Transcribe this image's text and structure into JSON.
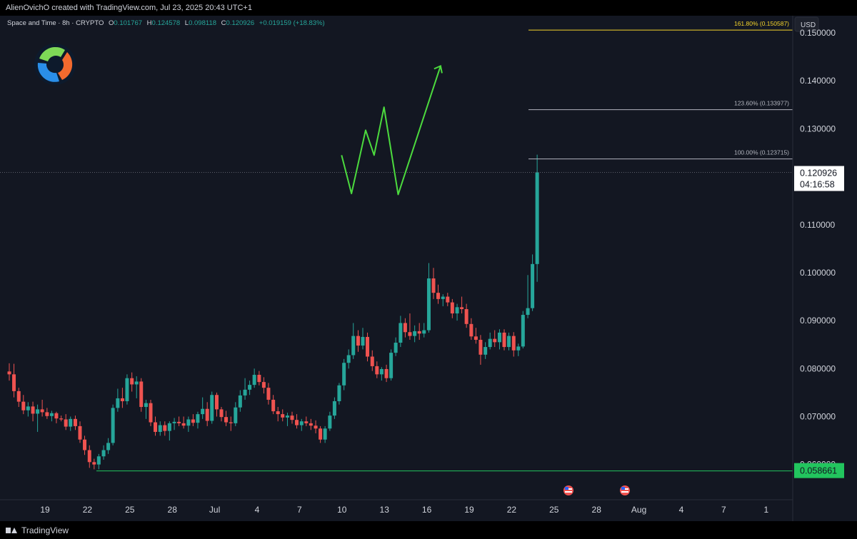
{
  "header": {
    "attribution": "AlienOvichO created with TradingView.com, Jul 23, 2025 20:43 UTC+1"
  },
  "legend": {
    "symbol": "Space and Time · 8h · CRYPTO",
    "o_label": "O",
    "o_value": "0.101767",
    "h_label": "H",
    "h_value": "0.124578",
    "l_label": "L",
    "l_value": "0.098118",
    "c_label": "C",
    "c_value": "0.120926",
    "change": "+0.019159 (+18.83%)"
  },
  "price_axis": {
    "currency": "USD",
    "ticks": [
      "0.150000",
      "0.140000",
      "0.130000",
      "0.120000",
      "0.110000",
      "0.100000",
      "0.090000",
      "0.080000",
      "0.070000",
      "0.060000"
    ],
    "current_price": "0.120926",
    "countdown": "04:16:58",
    "support_price": "0.058661"
  },
  "time_axis": {
    "labels": [
      "19",
      "22",
      "25",
      "28",
      "Jul",
      "4",
      "7",
      "10",
      "13",
      "16",
      "19",
      "22",
      "25",
      "28",
      "Aug",
      "4",
      "7",
      "1"
    ]
  },
  "fib_levels": [
    {
      "label": "161.80% (0.150587)",
      "price": 0.150587,
      "color": "#f5d42b"
    },
    {
      "label": "123.60% (0.133977)",
      "price": 0.133977,
      "color": "#b2b5be"
    },
    {
      "label": "100.00% (0.123715)",
      "price": 0.123715,
      "color": "#b2b5be"
    }
  ],
  "support_level": {
    "price": 0.058661,
    "color": "#22c55e"
  },
  "projection": {
    "color": "#4cdb3e",
    "points": [
      [
        23.5,
        0.1245
      ],
      [
        24.2,
        0.1165
      ],
      [
        25.2,
        0.1297
      ],
      [
        25.8,
        0.1245
      ],
      [
        26.5,
        0.1345
      ],
      [
        27.5,
        0.1163
      ],
      [
        30.5,
        0.1431
      ]
    ]
  },
  "colors": {
    "up": "#26a69a",
    "down": "#ef5350",
    "background": "#131722",
    "axis_text": "#d1d4dc"
  },
  "footer": {
    "brand": "TradingView"
  },
  "chart_data": {
    "type": "candlestick",
    "title": "Space and Time · 8h · CRYPTO",
    "x_unit": "days from Jun 19, 2025",
    "ylim": [
      0.0565,
      0.152
    ],
    "series": [
      {
        "x": 0,
        "o": 0.0794,
        "h": 0.0811,
        "l": 0.0775,
        "c": 0.0788
      },
      {
        "x": 0.33,
        "o": 0.0788,
        "h": 0.081,
        "l": 0.074,
        "c": 0.0753
      },
      {
        "x": 0.67,
        "o": 0.0753,
        "h": 0.076,
        "l": 0.072,
        "c": 0.0731
      },
      {
        "x": 1,
        "o": 0.0731,
        "h": 0.0745,
        "l": 0.0705,
        "c": 0.0713
      },
      {
        "x": 1.33,
        "o": 0.0713,
        "h": 0.073,
        "l": 0.07,
        "c": 0.0721
      },
      {
        "x": 1.67,
        "o": 0.0721,
        "h": 0.0731,
        "l": 0.069,
        "c": 0.0706
      },
      {
        "x": 2,
        "o": 0.0706,
        "h": 0.0725,
        "l": 0.0668,
        "c": 0.0715
      },
      {
        "x": 2.33,
        "o": 0.0715,
        "h": 0.0735,
        "l": 0.07,
        "c": 0.0709
      },
      {
        "x": 2.67,
        "o": 0.0709,
        "h": 0.0718,
        "l": 0.0695,
        "c": 0.0701
      },
      {
        "x": 3,
        "o": 0.0701,
        "h": 0.0712,
        "l": 0.069,
        "c": 0.0707
      },
      {
        "x": 3.33,
        "o": 0.0707,
        "h": 0.071,
        "l": 0.0686,
        "c": 0.0696
      },
      {
        "x": 3.67,
        "o": 0.0696,
        "h": 0.0702,
        "l": 0.069,
        "c": 0.0694
      },
      {
        "x": 4,
        "o": 0.0694,
        "h": 0.0705,
        "l": 0.0672,
        "c": 0.0679
      },
      {
        "x": 4.33,
        "o": 0.0679,
        "h": 0.07,
        "l": 0.067,
        "c": 0.0695
      },
      {
        "x": 4.67,
        "o": 0.0695,
        "h": 0.0702,
        "l": 0.0672,
        "c": 0.068
      },
      {
        "x": 5,
        "o": 0.068,
        "h": 0.069,
        "l": 0.0645,
        "c": 0.0652
      },
      {
        "x": 5.33,
        "o": 0.0652,
        "h": 0.066,
        "l": 0.062,
        "c": 0.063
      },
      {
        "x": 5.67,
        "o": 0.063,
        "h": 0.064,
        "l": 0.0593,
        "c": 0.0605
      },
      {
        "x": 6,
        "o": 0.0605,
        "h": 0.0612,
        "l": 0.059,
        "c": 0.06
      },
      {
        "x": 6.33,
        "o": 0.06,
        "h": 0.0622,
        "l": 0.059,
        "c": 0.0617
      },
      {
        "x": 6.67,
        "o": 0.0617,
        "h": 0.064,
        "l": 0.061,
        "c": 0.063
      },
      {
        "x": 7,
        "o": 0.063,
        "h": 0.0655,
        "l": 0.0622,
        "c": 0.0645
      },
      {
        "x": 7.33,
        "o": 0.0645,
        "h": 0.0725,
        "l": 0.064,
        "c": 0.0718
      },
      {
        "x": 7.67,
        "o": 0.0718,
        "h": 0.0758,
        "l": 0.071,
        "c": 0.0738
      },
      {
        "x": 8,
        "o": 0.0738,
        "h": 0.076,
        "l": 0.0718,
        "c": 0.0732
      },
      {
        "x": 8.33,
        "o": 0.0732,
        "h": 0.0788,
        "l": 0.0725,
        "c": 0.078
      },
      {
        "x": 8.67,
        "o": 0.078,
        "h": 0.0792,
        "l": 0.0752,
        "c": 0.0767
      },
      {
        "x": 9,
        "o": 0.0767,
        "h": 0.0784,
        "l": 0.0738,
        "c": 0.0773
      },
      {
        "x": 9.33,
        "o": 0.0773,
        "h": 0.078,
        "l": 0.071,
        "c": 0.072
      },
      {
        "x": 9.67,
        "o": 0.072,
        "h": 0.0735,
        "l": 0.0695,
        "c": 0.0728
      },
      {
        "x": 10,
        "o": 0.0728,
        "h": 0.0735,
        "l": 0.068,
        "c": 0.0688
      },
      {
        "x": 10.33,
        "o": 0.0688,
        "h": 0.07,
        "l": 0.066,
        "c": 0.0668
      },
      {
        "x": 10.67,
        "o": 0.0668,
        "h": 0.069,
        "l": 0.066,
        "c": 0.0682
      },
      {
        "x": 11,
        "o": 0.0682,
        "h": 0.069,
        "l": 0.066,
        "c": 0.067
      },
      {
        "x": 11.33,
        "o": 0.067,
        "h": 0.069,
        "l": 0.065,
        "c": 0.0686
      },
      {
        "x": 11.67,
        "o": 0.0686,
        "h": 0.0697,
        "l": 0.0672,
        "c": 0.0689
      },
      {
        "x": 12,
        "o": 0.0689,
        "h": 0.07,
        "l": 0.068,
        "c": 0.0686
      },
      {
        "x": 12.33,
        "o": 0.0686,
        "h": 0.07,
        "l": 0.0675,
        "c": 0.0681
      },
      {
        "x": 12.67,
        "o": 0.0681,
        "h": 0.07,
        "l": 0.0668,
        "c": 0.0694
      },
      {
        "x": 13,
        "o": 0.0694,
        "h": 0.0705,
        "l": 0.068,
        "c": 0.0687
      },
      {
        "x": 13.33,
        "o": 0.0687,
        "h": 0.071,
        "l": 0.0675,
        "c": 0.0705
      },
      {
        "x": 13.67,
        "o": 0.0705,
        "h": 0.074,
        "l": 0.0695,
        "c": 0.0716
      },
      {
        "x": 14,
        "o": 0.0716,
        "h": 0.073,
        "l": 0.068,
        "c": 0.0691
      },
      {
        "x": 14.33,
        "o": 0.0691,
        "h": 0.0752,
        "l": 0.0685,
        "c": 0.0745
      },
      {
        "x": 14.67,
        "o": 0.0745,
        "h": 0.075,
        "l": 0.07,
        "c": 0.0715
      },
      {
        "x": 15,
        "o": 0.0715,
        "h": 0.072,
        "l": 0.069,
        "c": 0.0699
      },
      {
        "x": 15.33,
        "o": 0.0699,
        "h": 0.0712,
        "l": 0.068,
        "c": 0.0688
      },
      {
        "x": 15.67,
        "o": 0.0688,
        "h": 0.07,
        "l": 0.067,
        "c": 0.0686
      },
      {
        "x": 16,
        "o": 0.0686,
        "h": 0.073,
        "l": 0.068,
        "c": 0.0719
      },
      {
        "x": 16.33,
        "o": 0.0719,
        "h": 0.0755,
        "l": 0.071,
        "c": 0.0744
      },
      {
        "x": 16.67,
        "o": 0.0744,
        "h": 0.078,
        "l": 0.0735,
        "c": 0.0756
      },
      {
        "x": 17,
        "o": 0.0756,
        "h": 0.0775,
        "l": 0.0745,
        "c": 0.0766
      },
      {
        "x": 17.33,
        "o": 0.0766,
        "h": 0.08,
        "l": 0.076,
        "c": 0.0787
      },
      {
        "x": 17.67,
        "o": 0.0787,
        "h": 0.0795,
        "l": 0.0765,
        "c": 0.0772
      },
      {
        "x": 18,
        "o": 0.0772,
        "h": 0.0782,
        "l": 0.0748,
        "c": 0.076
      },
      {
        "x": 18.33,
        "o": 0.076,
        "h": 0.077,
        "l": 0.0725,
        "c": 0.0735
      },
      {
        "x": 18.67,
        "o": 0.0735,
        "h": 0.0745,
        "l": 0.0705,
        "c": 0.0711
      },
      {
        "x": 19,
        "o": 0.0711,
        "h": 0.072,
        "l": 0.069,
        "c": 0.0705
      },
      {
        "x": 19.33,
        "o": 0.0705,
        "h": 0.0715,
        "l": 0.069,
        "c": 0.0698
      },
      {
        "x": 19.67,
        "o": 0.0698,
        "h": 0.0708,
        "l": 0.068,
        "c": 0.0702
      },
      {
        "x": 20,
        "o": 0.0702,
        "h": 0.071,
        "l": 0.0685,
        "c": 0.0693
      },
      {
        "x": 20.33,
        "o": 0.0693,
        "h": 0.0705,
        "l": 0.0675,
        "c": 0.0682
      },
      {
        "x": 20.67,
        "o": 0.0682,
        "h": 0.0695,
        "l": 0.067,
        "c": 0.069
      },
      {
        "x": 21,
        "o": 0.069,
        "h": 0.07,
        "l": 0.068,
        "c": 0.0686
      },
      {
        "x": 21.33,
        "o": 0.0686,
        "h": 0.0695,
        "l": 0.0672,
        "c": 0.0681
      },
      {
        "x": 21.67,
        "o": 0.0681,
        "h": 0.0692,
        "l": 0.0665,
        "c": 0.0675
      },
      {
        "x": 22,
        "o": 0.0675,
        "h": 0.068,
        "l": 0.0645,
        "c": 0.0652
      },
      {
        "x": 22.33,
        "o": 0.0652,
        "h": 0.068,
        "l": 0.0645,
        "c": 0.0675
      },
      {
        "x": 22.67,
        "o": 0.0675,
        "h": 0.071,
        "l": 0.067,
        "c": 0.0702
      },
      {
        "x": 23,
        "o": 0.0702,
        "h": 0.074,
        "l": 0.0695,
        "c": 0.0732
      },
      {
        "x": 23.33,
        "o": 0.0732,
        "h": 0.077,
        "l": 0.0725,
        "c": 0.0765
      },
      {
        "x": 23.67,
        "o": 0.0765,
        "h": 0.082,
        "l": 0.0755,
        "c": 0.0812
      },
      {
        "x": 24,
        "o": 0.0812,
        "h": 0.084,
        "l": 0.08,
        "c": 0.0828
      },
      {
        "x": 24.33,
        "o": 0.0828,
        "h": 0.0895,
        "l": 0.082,
        "c": 0.0868
      },
      {
        "x": 24.67,
        "o": 0.0868,
        "h": 0.088,
        "l": 0.0835,
        "c": 0.0848
      },
      {
        "x": 25,
        "o": 0.0848,
        "h": 0.0885,
        "l": 0.084,
        "c": 0.0866
      },
      {
        "x": 25.33,
        "o": 0.0866,
        "h": 0.0875,
        "l": 0.0815,
        "c": 0.0825
      },
      {
        "x": 25.67,
        "o": 0.0825,
        "h": 0.0838,
        "l": 0.0795,
        "c": 0.0805
      },
      {
        "x": 26,
        "o": 0.0805,
        "h": 0.0815,
        "l": 0.078,
        "c": 0.0788
      },
      {
        "x": 26.33,
        "o": 0.0788,
        "h": 0.0803,
        "l": 0.0775,
        "c": 0.0799
      },
      {
        "x": 26.67,
        "o": 0.0799,
        "h": 0.0808,
        "l": 0.0772,
        "c": 0.078
      },
      {
        "x": 27,
        "o": 0.078,
        "h": 0.084,
        "l": 0.0775,
        "c": 0.0833
      },
      {
        "x": 27.33,
        "o": 0.0833,
        "h": 0.0865,
        "l": 0.0826,
        "c": 0.0854
      },
      {
        "x": 27.67,
        "o": 0.0854,
        "h": 0.091,
        "l": 0.0845,
        "c": 0.0895
      },
      {
        "x": 28,
        "o": 0.0895,
        "h": 0.0905,
        "l": 0.0865,
        "c": 0.0876
      },
      {
        "x": 28.33,
        "o": 0.0876,
        "h": 0.0915,
        "l": 0.086,
        "c": 0.0868
      },
      {
        "x": 28.67,
        "o": 0.0868,
        "h": 0.089,
        "l": 0.0855,
        "c": 0.0878
      },
      {
        "x": 29,
        "o": 0.0878,
        "h": 0.0895,
        "l": 0.086,
        "c": 0.0873
      },
      {
        "x": 29.33,
        "o": 0.0873,
        "h": 0.0895,
        "l": 0.0865,
        "c": 0.088
      },
      {
        "x": 29.67,
        "o": 0.088,
        "h": 0.102,
        "l": 0.0875,
        "c": 0.0988
      },
      {
        "x": 30,
        "o": 0.0988,
        "h": 0.101,
        "l": 0.0945,
        "c": 0.0958
      },
      {
        "x": 30.33,
        "o": 0.0958,
        "h": 0.0975,
        "l": 0.0935,
        "c": 0.0945
      },
      {
        "x": 30.67,
        "o": 0.0945,
        "h": 0.0955,
        "l": 0.093,
        "c": 0.095
      },
      {
        "x": 31,
        "o": 0.095,
        "h": 0.0958,
        "l": 0.093,
        "c": 0.0938
      },
      {
        "x": 31.33,
        "o": 0.0938,
        "h": 0.0945,
        "l": 0.0905,
        "c": 0.0915
      },
      {
        "x": 31.67,
        "o": 0.0915,
        "h": 0.0935,
        "l": 0.09,
        "c": 0.0928
      },
      {
        "x": 32,
        "o": 0.0928,
        "h": 0.095,
        "l": 0.0915,
        "c": 0.0924
      },
      {
        "x": 32.33,
        "o": 0.0924,
        "h": 0.0935,
        "l": 0.0885,
        "c": 0.0893
      },
      {
        "x": 32.67,
        "o": 0.0893,
        "h": 0.0905,
        "l": 0.086,
        "c": 0.0867
      },
      {
        "x": 33,
        "o": 0.0867,
        "h": 0.0885,
        "l": 0.0852,
        "c": 0.086
      },
      {
        "x": 33.33,
        "o": 0.086,
        "h": 0.087,
        "l": 0.0808,
        "c": 0.0829
      },
      {
        "x": 33.67,
        "o": 0.0829,
        "h": 0.0855,
        "l": 0.082,
        "c": 0.0845
      },
      {
        "x": 34,
        "o": 0.0845,
        "h": 0.0875,
        "l": 0.084,
        "c": 0.0862
      },
      {
        "x": 34.33,
        "o": 0.0862,
        "h": 0.088,
        "l": 0.0845,
        "c": 0.0855
      },
      {
        "x": 34.67,
        "o": 0.0855,
        "h": 0.0882,
        "l": 0.084,
        "c": 0.0875
      },
      {
        "x": 35,
        "o": 0.0875,
        "h": 0.0882,
        "l": 0.0838,
        "c": 0.0845
      },
      {
        "x": 35.33,
        "o": 0.0845,
        "h": 0.0875,
        "l": 0.0838,
        "c": 0.0868
      },
      {
        "x": 35.67,
        "o": 0.0868,
        "h": 0.0876,
        "l": 0.0825,
        "c": 0.0838
      },
      {
        "x": 36,
        "o": 0.0838,
        "h": 0.0852,
        "l": 0.0826,
        "c": 0.0846
      },
      {
        "x": 36.33,
        "o": 0.0846,
        "h": 0.092,
        "l": 0.0842,
        "c": 0.0912
      },
      {
        "x": 36.67,
        "o": 0.0912,
        "h": 0.0995,
        "l": 0.0905,
        "c": 0.0926
      },
      {
        "x": 37,
        "o": 0.0926,
        "h": 0.1038,
        "l": 0.092,
        "c": 0.1018
      },
      {
        "x": 37.33,
        "o": 0.1018,
        "h": 0.1246,
        "l": 0.0981,
        "c": 0.1209
      }
    ]
  }
}
